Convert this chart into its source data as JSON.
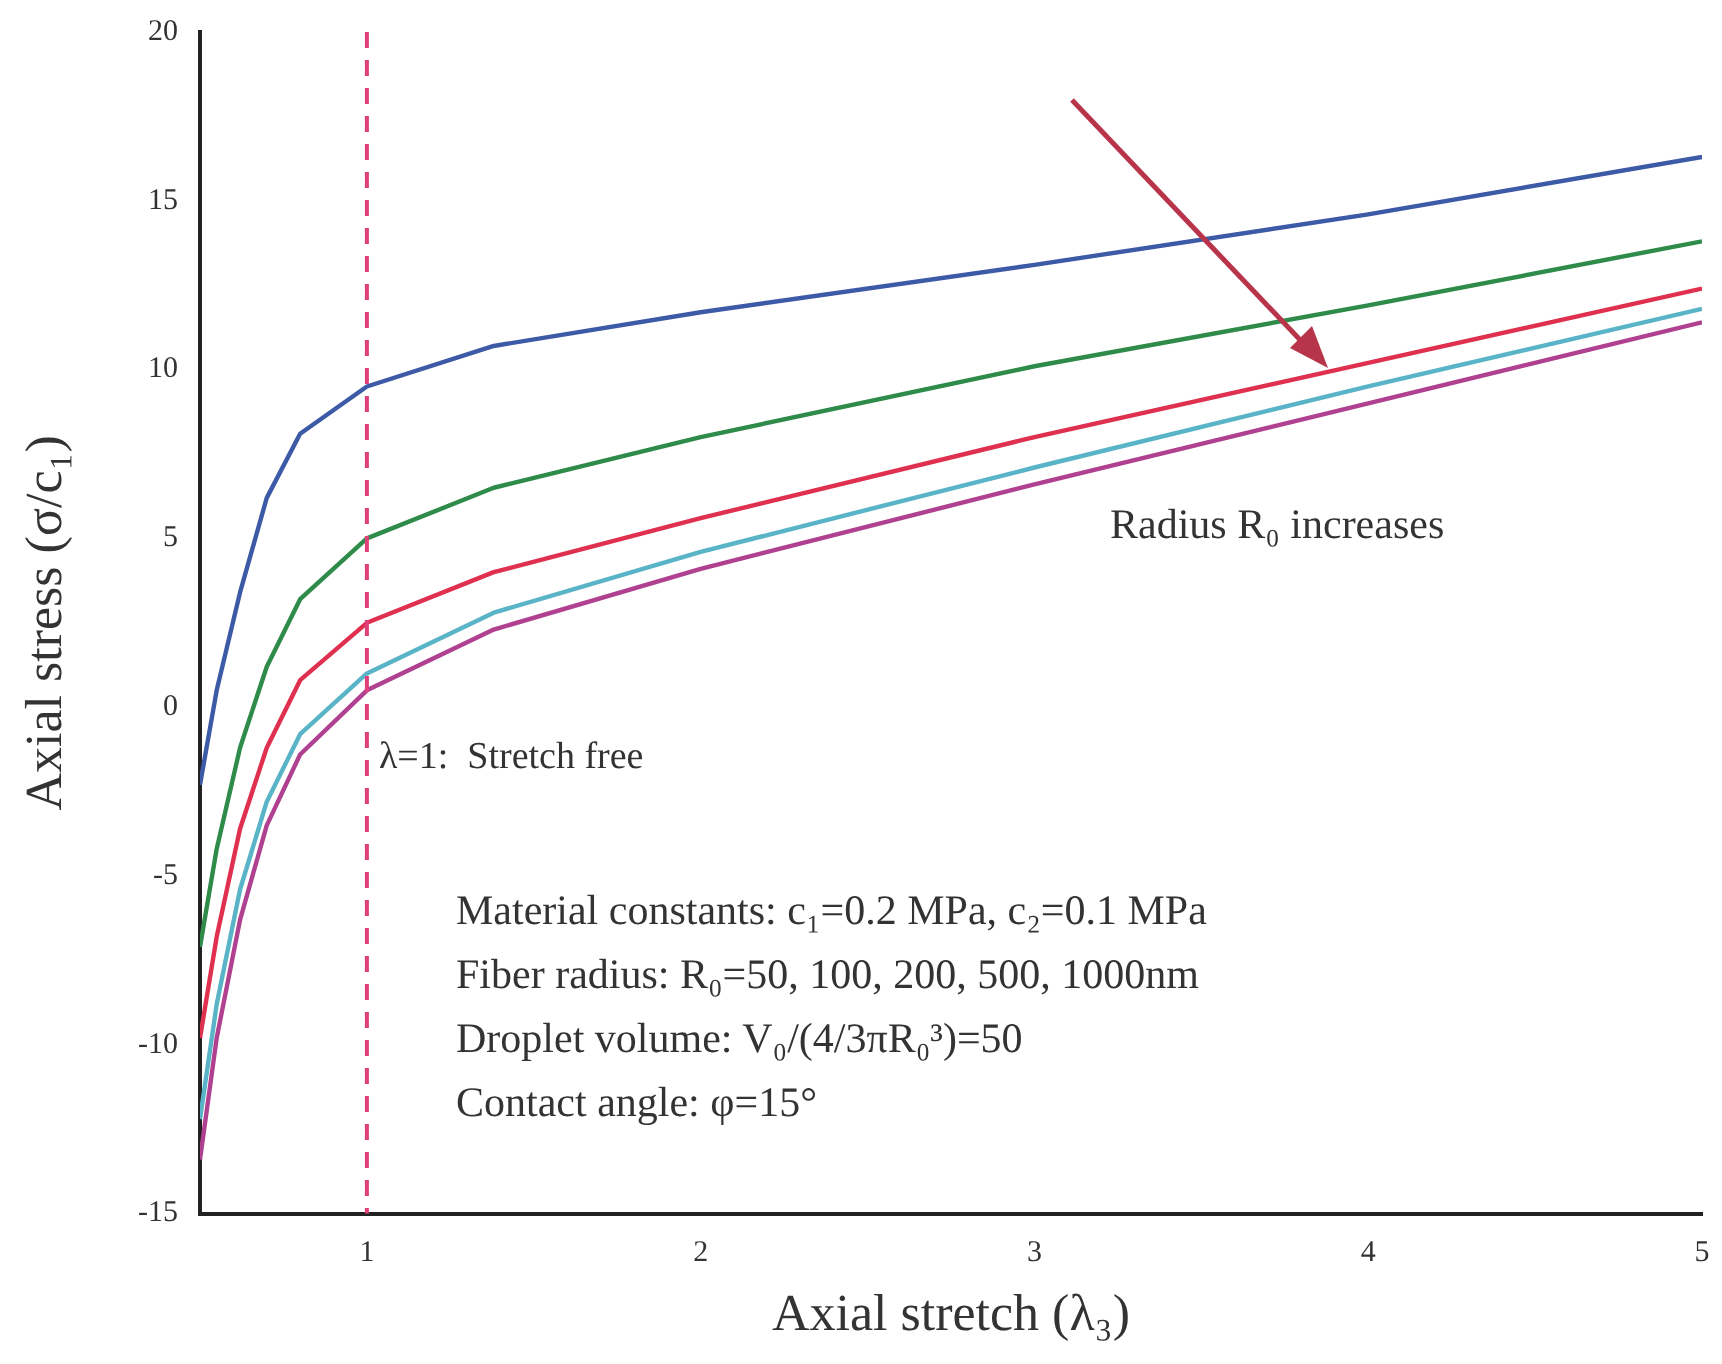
{
  "chart_data": {
    "type": "line",
    "xlabel": "Axial stretch (λ₃)",
    "ylabel": "Axial stress (σ/c₁)",
    "xlim": [
      0.5,
      5
    ],
    "xticks": [
      1,
      2,
      3,
      4,
      5
    ],
    "ylim": [
      -15,
      20
    ],
    "yticks": [
      20,
      15,
      10,
      5,
      0,
      -5,
      -10,
      -15
    ],
    "grid": false,
    "legend": false,
    "marker": "none",
    "line_style": "solid",
    "x": [
      0.5,
      0.55,
      0.62,
      0.7,
      0.8,
      1,
      1.38,
      2,
      3,
      4,
      5
    ],
    "series": [
      {
        "color": "#3c5aa6",
        "values": [
          -2.3,
          0.5,
          3.4,
          6.2,
          8.1,
          9.5,
          10.7,
          11.7,
          13.1,
          14.6,
          16.3
        ]
      },
      {
        "color": "#2e8b4a",
        "values": [
          -7.1,
          -4.2,
          -1.2,
          1.2,
          3.2,
          5.0,
          6.5,
          8.0,
          10.1,
          11.9,
          13.8
        ]
      },
      {
        "color": "#e03050",
        "values": [
          -9.8,
          -6.8,
          -3.6,
          -1.2,
          0.8,
          2.5,
          4.0,
          5.6,
          8.0,
          10.2,
          12.4
        ]
      },
      {
        "color": "#5ab4c8",
        "values": [
          -12.2,
          -8.8,
          -5.4,
          -2.8,
          -0.8,
          1.0,
          2.8,
          4.6,
          7.1,
          9.5,
          11.8
        ]
      },
      {
        "color": "#b04090",
        "values": [
          -13.4,
          -9.8,
          -6.3,
          -3.5,
          -1.4,
          0.5,
          2.3,
          4.1,
          6.6,
          9.0,
          11.4
        ]
      }
    ],
    "ref_lines": [
      {
        "axis": "x",
        "value": 1,
        "label": "λ=1:  Stretch free",
        "color": "#e0407a",
        "line_style": "dashed"
      }
    ],
    "annotations": [
      "Radius R₀ increases",
      "Material constants: c₁=0.2 MPa, c₂=0.1 MPa",
      "Fiber radius: R₀=50, 100, 200, 500, 1000nm",
      "Droplet volume: V₀/(4/3πR₀³)=50",
      "Contact angle: φ=15°"
    ]
  }
}
